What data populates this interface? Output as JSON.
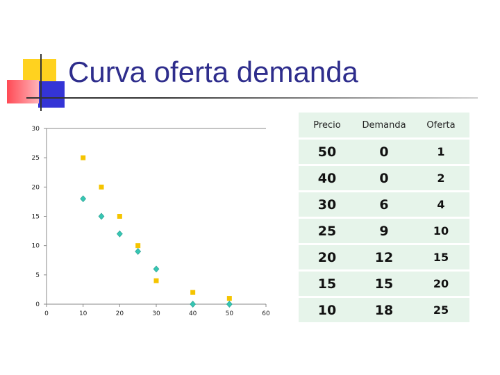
{
  "slide_title": "Curva oferta demanda",
  "table": {
    "headers": [
      "Precio",
      "Demanda",
      "Oferta"
    ],
    "rows": [
      [
        "50",
        "0",
        "1"
      ],
      [
        "40",
        "0",
        "2"
      ],
      [
        "30",
        "6",
        "4"
      ],
      [
        "25",
        "9",
        "10"
      ],
      [
        "20",
        "12",
        "15"
      ],
      [
        "15",
        "15",
        "20"
      ],
      [
        "10",
        "18",
        "25"
      ]
    ]
  },
  "colors": {
    "title": "#2e2d8c",
    "oferta_marker": "#f5c400",
    "demanda_marker": "#36c6b3",
    "table_bg": "#e6f4ea"
  },
  "chart_data": {
    "type": "scatter",
    "xlim": [
      0,
      60
    ],
    "ylim": [
      0,
      30
    ],
    "x_ticks": [
      0,
      10,
      20,
      30,
      40,
      50,
      60
    ],
    "y_ticks": [
      0,
      5,
      10,
      15,
      20,
      25,
      30
    ],
    "grid": false,
    "legend": "none",
    "series": [
      {
        "color": "#f5c400",
        "marker": "square",
        "points": [
          [
            10,
            25
          ],
          [
            15,
            20
          ],
          [
            20,
            15
          ],
          [
            25,
            10
          ],
          [
            30,
            4
          ],
          [
            40,
            2
          ],
          [
            50,
            1
          ]
        ]
      },
      {
        "color": "#36c6b3",
        "marker": "diamond",
        "points": [
          [
            10,
            18
          ],
          [
            15,
            15
          ],
          [
            20,
            12
          ],
          [
            25,
            9
          ],
          [
            30,
            6
          ],
          [
            40,
            0
          ],
          [
            50,
            0
          ]
        ]
      }
    ]
  }
}
